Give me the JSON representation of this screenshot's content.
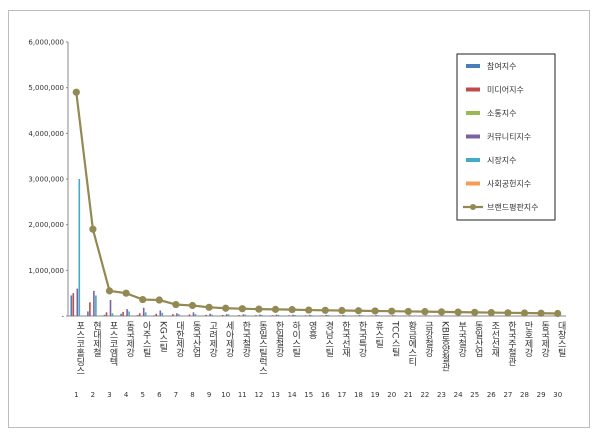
{
  "chart_data": {
    "type": "bar",
    "title": "",
    "xlabel": "",
    "ylabel": "",
    "ylim": [
      0,
      6000000
    ],
    "yticks": [
      "-",
      "1,000,000",
      "2,000,000",
      "3,000,000",
      "4,000,000",
      "5,000,000",
      "6,000,000"
    ],
    "grid": false,
    "legend_position": "right",
    "categories": [
      "포스코홀딩스",
      "현대제철",
      "포스코엠텍",
      "동국제강",
      "아주스틸",
      "KG스틸",
      "대한제강",
      "동국산업",
      "고려제강",
      "세아제강",
      "한국철강",
      "동일스틸럭스",
      "한일철강",
      "하이스틸",
      "영흥",
      "경남스틸",
      "한국선재",
      "한국특강",
      "휴스틸",
      "TCC스틸",
      "황금에스티",
      "금강철강",
      "KBI동양철관",
      "부국철강",
      "동일산업",
      "조선선재",
      "한국주철관",
      "만호제강",
      "동국제강",
      "대창스틸"
    ],
    "category_numbers": [
      "1",
      "2",
      "3",
      "4",
      "5",
      "6",
      "7",
      "8",
      "9",
      "10",
      "11",
      "12",
      "13",
      "14",
      "15",
      "16",
      "17",
      "18",
      "19",
      "20",
      "21",
      "22",
      "23",
      "24",
      "25",
      "26",
      "27",
      "28",
      "29",
      "30"
    ],
    "series": [
      {
        "name": "참여지수",
        "color": "#4a7ebb",
        "type": "bar",
        "values": [
          450000,
          100000,
          25000,
          50000,
          20000,
          15000,
          10000,
          10000,
          8000,
          8000,
          8000,
          6000,
          6000,
          6000,
          5000,
          5000,
          5000,
          5000,
          5000,
          5000,
          4000,
          4000,
          4000,
          4000,
          4000,
          3000,
          3000,
          3000,
          3000,
          3000
        ]
      },
      {
        "name": "미디어지수",
        "color": "#be4b48",
        "type": "bar",
        "values": [
          500000,
          300000,
          80000,
          90000,
          60000,
          50000,
          40000,
          35000,
          25000,
          22000,
          20000,
          18000,
          17000,
          16000,
          15000,
          14000,
          13000,
          12000,
          12000,
          11000,
          10000,
          10000,
          9000,
          9000,
          8000,
          8000,
          7000,
          7000,
          6000,
          6000
        ]
      },
      {
        "name": "소통지수",
        "color": "#98b954",
        "type": "bar",
        "values": [
          0,
          0,
          0,
          0,
          0,
          0,
          0,
          0,
          0,
          0,
          0,
          0,
          0,
          0,
          0,
          0,
          0,
          0,
          0,
          0,
          0,
          0,
          0,
          0,
          0,
          0,
          0,
          0,
          0,
          0
        ]
      },
      {
        "name": "커뮤니티지수",
        "color": "#7d60a0",
        "type": "bar",
        "values": [
          600000,
          550000,
          350000,
          150000,
          180000,
          120000,
          60000,
          80000,
          50000,
          40000,
          35000,
          30000,
          30000,
          28000,
          25000,
          25000,
          22000,
          20000,
          20000,
          18000,
          16000,
          15000,
          15000,
          14000,
          13000,
          12000,
          12000,
          11000,
          10000,
          10000
        ]
      },
      {
        "name": "시장지수",
        "color": "#46aac5",
        "type": "bar",
        "values": [
          3000000,
          450000,
          60000,
          100000,
          80000,
          70000,
          40000,
          40000,
          30000,
          35000,
          30000,
          25000,
          25000,
          22000,
          20000,
          20000,
          20000,
          18000,
          18000,
          17000,
          15000,
          15000,
          14000,
          13000,
          12000,
          12000,
          11000,
          10000,
          10000,
          9000
        ]
      },
      {
        "name": "사회공헌지수",
        "color": "#f59d56",
        "type": "bar",
        "values": [
          0,
          0,
          0,
          0,
          0,
          0,
          0,
          0,
          0,
          0,
          0,
          0,
          0,
          0,
          0,
          0,
          0,
          0,
          0,
          0,
          0,
          0,
          0,
          0,
          0,
          0,
          0,
          0,
          0,
          0
        ]
      },
      {
        "name": "브랜드평판지수",
        "color": "#938953",
        "type": "line",
        "values": [
          4900000,
          1900000,
          550000,
          500000,
          360000,
          350000,
          250000,
          230000,
          190000,
          170000,
          160000,
          150000,
          145000,
          140000,
          130000,
          125000,
          120000,
          115000,
          110000,
          105000,
          100000,
          95000,
          90000,
          85000,
          80000,
          75000,
          70000,
          65000,
          60000,
          55000
        ]
      }
    ]
  }
}
